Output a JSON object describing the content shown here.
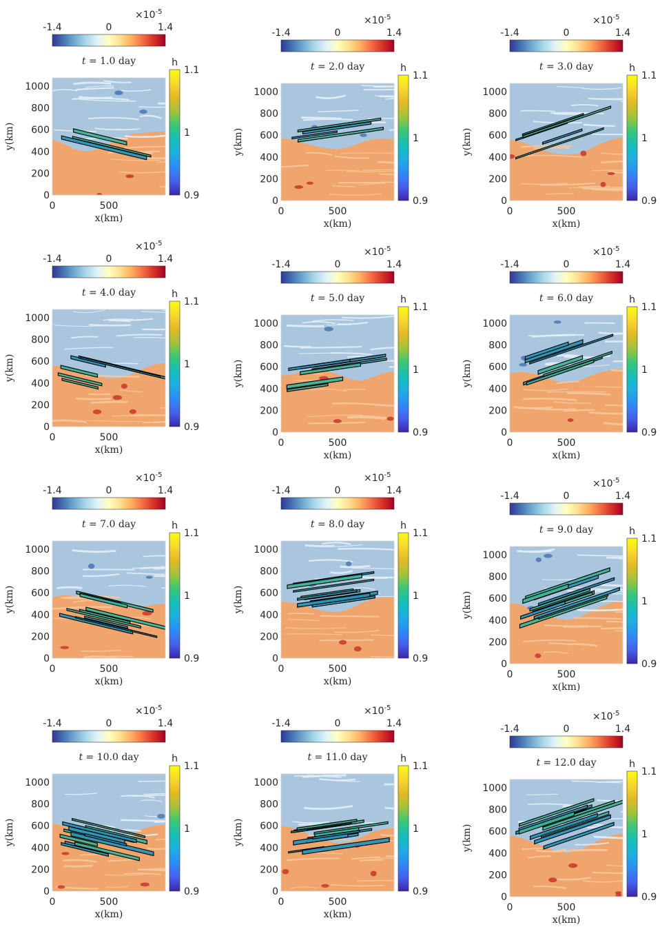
{
  "figure": {
    "colors": {
      "background": "#ffffff",
      "text": "#262626",
      "outline": "#000000",
      "neg_field": "#a9c6de",
      "neg_light": "#e3eef6",
      "pos_field": "#f0a56c",
      "pos_light": "#f6c89c",
      "parcel": "#2a95b8",
      "parcel_light": "#3fb59a"
    },
    "vorticity_colorbar": {
      "scale_label": "×10",
      "scale_exponent": "-5",
      "ticks": [
        "-1.4",
        "0",
        "1.4"
      ],
      "range": [
        -1.4e-05,
        1.4e-05
      ],
      "colormap": [
        "#313695",
        "#4575b4",
        "#74add1",
        "#abd9e9",
        "#e0f3f8",
        "#ffffbf",
        "#fee090",
        "#fdae61",
        "#f46d43",
        "#d73027",
        "#a50026"
      ]
    },
    "h_colorbar": {
      "label": "h",
      "ticks": [
        "0.9",
        "1",
        "1.1"
      ],
      "range": [
        0.9,
        1.1
      ],
      "colormap": [
        "#3e26a8",
        "#4760ef",
        "#2d8cf5",
        "#1cafe0",
        "#12bfb9",
        "#3bc776",
        "#a0c43a",
        "#e3b925",
        "#f9d72b",
        "#f9fb15"
      ]
    },
    "x_axis": {
      "label": "x(km)",
      "ticks": [
        "0",
        "500"
      ],
      "range": [
        0,
        1000
      ]
    },
    "y_axis": {
      "label": "y(km)",
      "ticks": [
        "0",
        "200",
        "400",
        "600",
        "800",
        "1000"
      ],
      "range": [
        0,
        1000
      ]
    }
  },
  "chart_data": [
    {
      "type": "heatmap",
      "title_prefix": "t",
      "title_value": "= 1.0 day",
      "time_day": 1.0,
      "front_y_km": [
        510,
        470,
        420,
        400,
        420,
        470,
        520,
        560,
        570,
        580,
        580
      ],
      "parcel_shape": "thin filament",
      "parcel_h": 1.0
    },
    {
      "type": "heatmap",
      "title_prefix": "t",
      "title_value": "= 2.0 day",
      "time_day": 2.0,
      "front_y_km": [
        570,
        560,
        530,
        500,
        480,
        470,
        490,
        530,
        560,
        570,
        560
      ],
      "parcel_shape": "two filaments",
      "parcel_h": 1.0
    },
    {
      "type": "heatmap",
      "title_prefix": "t",
      "title_value": "= 3.0 day",
      "time_day": 3.0,
      "front_y_km": [
        560,
        540,
        500,
        460,
        430,
        420,
        430,
        470,
        520,
        560,
        580
      ],
      "parcel_shape": "two patches",
      "parcel_h": 1.0
    },
    {
      "type": "heatmap",
      "title_prefix": "t",
      "title_value": "= 4.0 day",
      "time_day": 4.0,
      "front_y_km": [
        560,
        550,
        520,
        490,
        460,
        440,
        450,
        480,
        530,
        570,
        580
      ],
      "parcel_shape": "curved band",
      "parcel_h": 1.0
    },
    {
      "type": "heatmap",
      "title_prefix": "t",
      "title_value": "= 5.0 day",
      "time_day": 5.0,
      "front_y_km": [
        520,
        530,
        560,
        570,
        560,
        530,
        490,
        470,
        500,
        540,
        560
      ],
      "parcel_shape": "tilted band",
      "parcel_h": 1.0
    },
    {
      "type": "heatmap",
      "title_prefix": "t",
      "title_value": "= 6.0 day",
      "time_day": 6.0,
      "front_y_km": [
        540,
        550,
        540,
        510,
        470,
        450,
        470,
        510,
        550,
        570,
        580
      ],
      "parcel_shape": "two bands",
      "parcel_h": 1.0
    },
    {
      "type": "heatmap",
      "title_prefix": "t",
      "title_value": "= 7.0 day",
      "time_day": 7.0,
      "front_y_km": [
        560,
        580,
        570,
        550,
        520,
        490,
        470,
        460,
        470,
        490,
        500
      ],
      "parcel_shape": "striated band",
      "parcel_h": 1.0
    },
    {
      "type": "heatmap",
      "title_prefix": "t",
      "title_value": "= 8.0 day",
      "time_day": 8.0,
      "front_y_km": [
        520,
        510,
        480,
        450,
        430,
        420,
        450,
        500,
        540,
        560,
        560
      ],
      "parcel_shape": "striated band",
      "parcel_h": 1.0
    },
    {
      "type": "heatmap",
      "title_prefix": "t",
      "title_value": "= 9.0 day",
      "time_day": 9.0,
      "front_y_km": [
        560,
        540,
        500,
        460,
        420,
        400,
        420,
        470,
        520,
        560,
        580
      ],
      "parcel_shape": "filament bundle",
      "parcel_h": 1.0
    },
    {
      "type": "heatmap",
      "title_prefix": "t",
      "title_value": "= 10.0 day",
      "time_day": 10.0,
      "front_y_km": [
        620,
        600,
        560,
        510,
        470,
        450,
        470,
        520,
        570,
        600,
        610
      ],
      "parcel_shape": "filament bundle",
      "parcel_h": 1.0
    },
    {
      "type": "heatmap",
      "title_prefix": "t",
      "title_value": "= 11.0 day",
      "time_day": 11.0,
      "front_y_km": [
        600,
        580,
        540,
        500,
        460,
        440,
        450,
        490,
        540,
        570,
        580
      ],
      "parcel_shape": "filament bundle",
      "parcel_h": 1.0
    },
    {
      "type": "heatmap",
      "title_prefix": "t",
      "title_value": "= 12.0 day",
      "time_day": 12.0,
      "front_y_km": [
        560,
        540,
        500,
        460,
        420,
        400,
        420,
        470,
        520,
        560,
        580
      ],
      "parcel_shape": "filament bundle",
      "parcel_h": 1.0
    }
  ]
}
